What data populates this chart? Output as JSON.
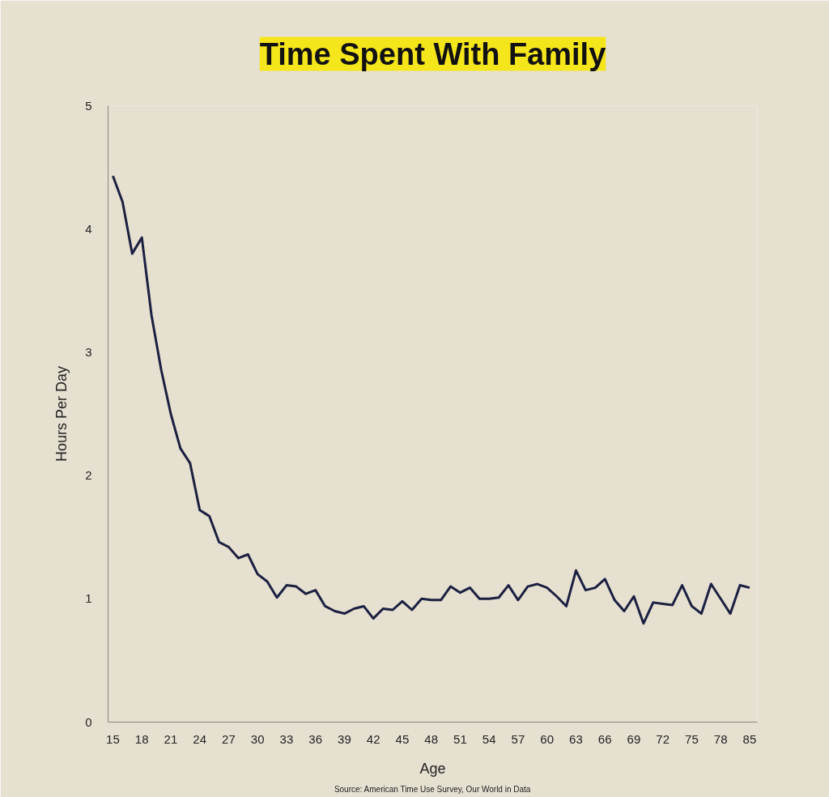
{
  "chart_data": {
    "type": "line",
    "title": "Time Spent With Family",
    "xlabel": "Age",
    "ylabel": "Hours Per Day",
    "annotations": [
      "Source: American Time Use Survey, Our World in Data"
    ],
    "categories": [
      "15",
      null,
      null,
      "18",
      null,
      null,
      "21",
      null,
      null,
      "24",
      null,
      null,
      "27",
      null,
      null,
      "30",
      null,
      null,
      "33",
      null,
      null,
      "36",
      null,
      null,
      "39",
      null,
      null,
      "42",
      null,
      null,
      "45",
      null,
      null,
      "48",
      null,
      null,
      "51",
      null,
      null,
      "54",
      null,
      null,
      "57",
      null,
      null,
      "60",
      null,
      null,
      "63",
      null,
      null,
      "66",
      null,
      null,
      "69",
      null,
      null,
      "72",
      null,
      null,
      "75",
      null,
      null,
      "78",
      null,
      null,
      "85"
    ],
    "series": [
      {
        "color": "#1b2040",
        "values": [
          4.43,
          4.22,
          3.8,
          3.93,
          3.3,
          2.86,
          2.5,
          2.22,
          2.1,
          1.72,
          1.67,
          1.46,
          1.42,
          1.33,
          1.36,
          1.2,
          1.14,
          1.01,
          1.11,
          1.1,
          1.04,
          1.07,
          0.94,
          0.9,
          0.88,
          0.92,
          0.94,
          0.84,
          0.92,
          0.91,
          0.98,
          0.91,
          1.0,
          0.99,
          0.99,
          1.1,
          1.05,
          1.09,
          1.0,
          1.0,
          1.01,
          1.11,
          0.99,
          1.1,
          1.12,
          1.09,
          1.02,
          0.94,
          1.23,
          1.07,
          1.09,
          1.16,
          0.99,
          0.9,
          1.02,
          0.8,
          0.97,
          0.96,
          0.95,
          1.11,
          0.94,
          0.88,
          1.12,
          1.0,
          0.88,
          1.11,
          1.09
        ]
      }
    ],
    "ylim": [
      0,
      5
    ],
    "yticks": [
      0,
      1,
      2,
      3,
      4,
      5
    ],
    "grid": false,
    "marker": "none",
    "line_style": "solid"
  }
}
